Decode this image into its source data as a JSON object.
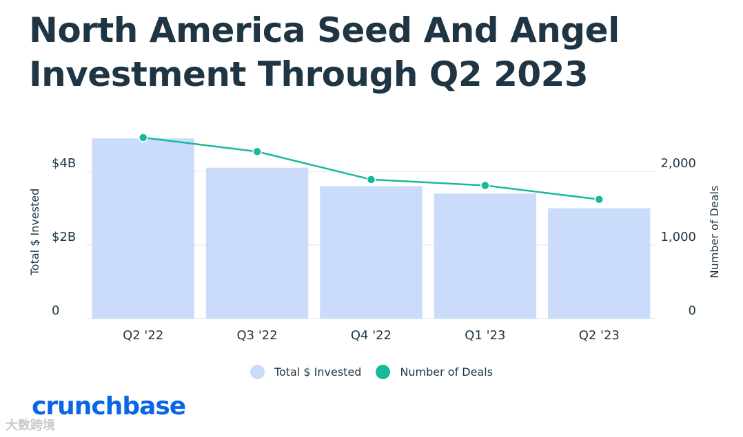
{
  "title": "North America Seed And Angel Investment Through Q2 2023",
  "chart_data": {
    "type": "bar+line",
    "title": "North America Seed And Angel Investment Through Q2 2023",
    "categories": [
      "Q2 '22",
      "Q3 '22",
      "Q4 '22",
      "Q1 '23",
      "Q2 '23"
    ],
    "series": [
      {
        "name": "Total $ Invested",
        "type": "bar",
        "axis": "left",
        "values": [
          4.9,
          4.1,
          3.6,
          3.4,
          3.0
        ],
        "color": "#cbdcfb"
      },
      {
        "name": "Number of Deals",
        "type": "line",
        "axis": "right",
        "values": [
          2460,
          2270,
          1890,
          1810,
          1620
        ],
        "color": "#17b99b"
      }
    ],
    "y_left": {
      "label": "Total $ Invested",
      "ticks": [
        0,
        2,
        4
      ],
      "tick_labels": [
        "0",
        "$2B",
        "$4B"
      ],
      "ylim": [
        0,
        4.9
      ]
    },
    "y_right": {
      "label": "Number of Deals",
      "ticks": [
        0,
        1000,
        2000
      ],
      "tick_labels": [
        "0",
        "1,000",
        "2,000"
      ],
      "ylim": [
        0,
        2450
      ]
    },
    "grid": true,
    "legend_position": "bottom-center"
  },
  "legend": {
    "invested": "Total $ Invested",
    "deals": "Number of Deals"
  },
  "colors": {
    "bar": "#cbdcfb",
    "line": "#17b99b",
    "text": "#1f3544",
    "logo": "#0a66e4"
  },
  "logo": "crunchbase",
  "watermark": "大数跨境"
}
